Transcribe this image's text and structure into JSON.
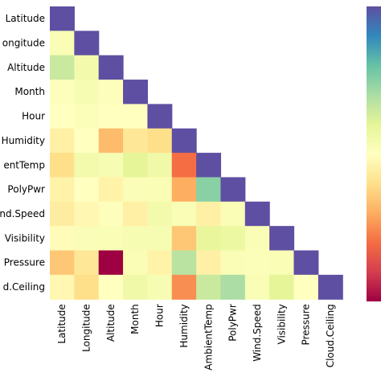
{
  "chart_data": {
    "type": "heatmap",
    "mask": "upper-triangle",
    "colormap": "Spectral",
    "labels": [
      "Latitude",
      "Longitude",
      "Altitude",
      "Month",
      "Hour",
      "Humidity",
      "AmbientTemp",
      "PolyPwr",
      "Wind.Speed",
      "Visibility",
      "Pressure",
      "Cloud.Ceiling"
    ],
    "row_labels_shown": [
      "Latitude",
      "ongitude",
      "Altitude",
      "Month",
      "Hour",
      "Humidity",
      "entTemp",
      "PolyPwr",
      "nd.Speed",
      "Visibility",
      "Pressure",
      "d.Ceiling"
    ],
    "col_labels_shown": [
      "Latitude",
      "Longitude",
      "Altitude",
      "Month",
      "Hour",
      "Humidity",
      "AmbientTemp",
      "PolyPwr",
      "Wind.Speed",
      "Visibility",
      "Pressure",
      "Cloud.Ceiling"
    ],
    "values": [
      [
        1.0
      ],
      [
        0.05,
        1.0
      ],
      [
        0.3,
        0.1,
        1.0
      ],
      [
        0.02,
        0.06,
        0.02,
        1.0
      ],
      [
        0.0,
        0.03,
        0.0,
        0.0,
        1.0
      ],
      [
        -0.1,
        0.0,
        -0.35,
        -0.15,
        -0.2,
        1.0
      ],
      [
        -0.2,
        0.1,
        0.06,
        0.2,
        0.12,
        -0.6,
        1.0
      ],
      [
        -0.08,
        0.0,
        -0.08,
        0.04,
        0.05,
        -0.4,
        0.5,
        1.0
      ],
      [
        -0.12,
        -0.05,
        0.02,
        -0.1,
        0.1,
        0.05,
        -0.1,
        0.05,
        1.0
      ],
      [
        -0.02,
        0.04,
        0.05,
        0.06,
        0.06,
        -0.3,
        0.18,
        0.15,
        0.05,
        1.0
      ],
      [
        -0.3,
        -0.15,
        -1.0,
        0.05,
        -0.08,
        0.35,
        -0.1,
        0.05,
        0.03,
        0.05,
        1.0
      ],
      [
        -0.05,
        -0.2,
        0.0,
        0.12,
        0.06,
        -0.5,
        0.3,
        0.4,
        0.05,
        0.2,
        0.0,
        1.0
      ]
    ],
    "vmin": -1,
    "vmax": 1,
    "colorbar": "right"
  }
}
